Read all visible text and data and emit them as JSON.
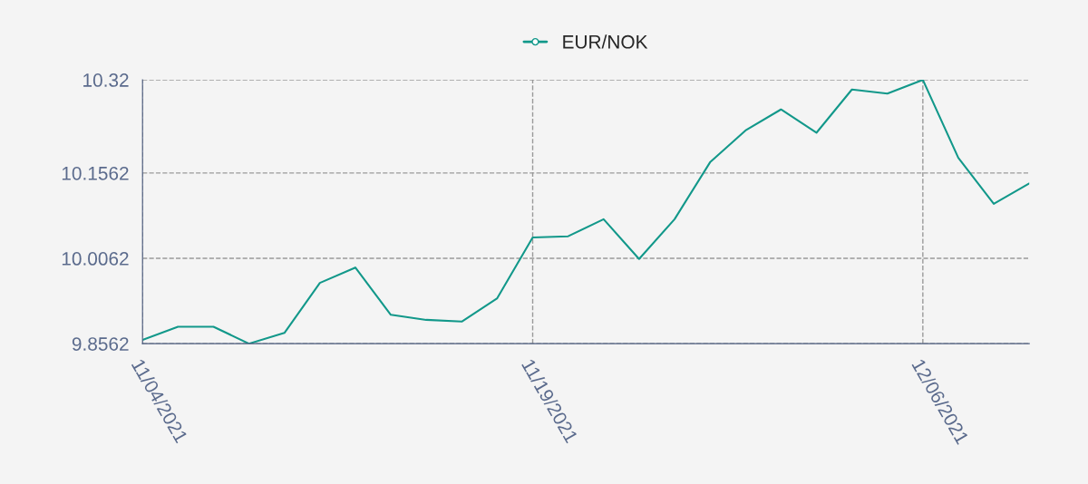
{
  "chart_data": {
    "type": "line",
    "categories": [
      "11/04/2021",
      null,
      null,
      null,
      null,
      null,
      null,
      null,
      null,
      null,
      null,
      "11/19/2021",
      null,
      null,
      null,
      null,
      null,
      null,
      null,
      null,
      null,
      null,
      "12/06/2021",
      null,
      null,
      null
    ],
    "series": [
      {
        "name": "EUR/NOK",
        "color": "#12988a",
        "values": [
          9.8626,
          9.886,
          9.886,
          9.8562,
          9.875,
          9.963,
          9.99,
          9.907,
          9.898,
          9.895,
          9.936,
          10.043,
          10.045,
          10.075,
          10.005,
          10.075,
          10.175,
          10.231,
          10.268,
          10.227,
          10.303,
          10.296,
          10.32,
          10.183,
          10.102,
          10.138
        ]
      }
    ],
    "ylim": [
      9.8562,
      10.32
    ],
    "yticks": [
      9.8562,
      10.0062,
      10.1562,
      10.32
    ],
    "grid": true,
    "legend": "top",
    "line_style": "solid"
  }
}
